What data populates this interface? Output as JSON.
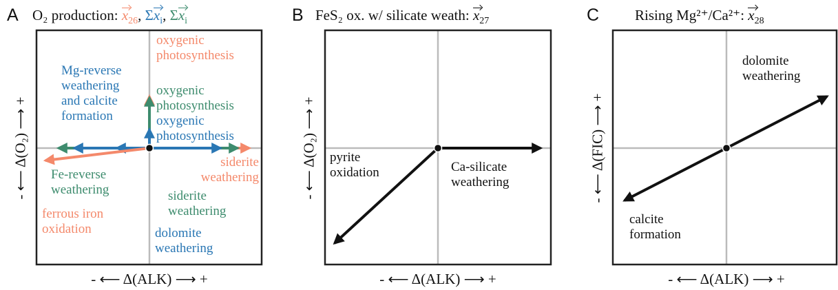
{
  "panels": [
    {
      "letter": "A",
      "title": [
        {
          "text": "O₂ production: "
        },
        {
          "vec": "x",
          "sub": "26",
          "color": "#f4896b"
        },
        {
          "text": ", "
        },
        {
          "text": "Σ",
          "color": "#2a77b4"
        },
        {
          "vec": "x",
          "sub": "i",
          "color": "#2a77b4"
        },
        {
          "text": ", "
        },
        {
          "text": "Σ",
          "color": "#3e8c6e"
        },
        {
          "vec": "x",
          "sub": "i",
          "color": "#3e8c6e"
        }
      ],
      "y_axis": "- ⟵ Δ(O₂) ⟶ +",
      "x_axis": "- ⟵ Δ(ALK) ⟶ +",
      "labels": [
        {
          "lines": [
            "oxygenic",
            "photosynthesis"
          ],
          "color": "#f4896b"
        },
        {
          "lines": [
            "oxygenic",
            "photosynthesis"
          ],
          "color": "#3e8c6e"
        },
        {
          "lines": [
            "oxygenic",
            "photosynthesis"
          ],
          "color": "#2a77b4"
        },
        {
          "lines": [
            "Mg-reverse",
            "weathering",
            "and calcite",
            "formation"
          ],
          "color": "#2a77b4"
        },
        {
          "lines": [
            "siderite",
            "weathering"
          ],
          "color": "#f4896b"
        },
        {
          "lines": [
            "Fe-reverse",
            "weathering"
          ],
          "color": "#3e8c6e"
        },
        {
          "lines": [
            "siderite",
            "weathering"
          ],
          "color": "#3e8c6e"
        },
        {
          "lines": [
            "ferrous iron",
            "oxidation"
          ],
          "color": "#f4896b"
        },
        {
          "lines": [
            "dolomite",
            "weathering"
          ],
          "color": "#2a77b4"
        }
      ]
    },
    {
      "letter": "B",
      "title": [
        {
          "text": "FeS₂ ox. w/ silicate weath: "
        },
        {
          "vec": "x",
          "sub": "27"
        }
      ],
      "y_axis": "- ⟵ Δ(O₂) ⟶ +",
      "x_axis": "- ⟵ Δ(ALK) ⟶ +",
      "labels": [
        {
          "lines": [
            "pyrite",
            "oxidation"
          ]
        },
        {
          "lines": [
            "Ca-silicate",
            "weathering"
          ]
        }
      ]
    },
    {
      "letter": "C",
      "title": [
        {
          "text": "Rising Mg²⁺/Ca²⁺: "
        },
        {
          "vec": "x",
          "sub": "28"
        }
      ],
      "y_axis": "- ⟵ Δ(FIC) ⟶ +",
      "x_axis": "- ⟵ Δ(ALK) ⟶ +",
      "labels": [
        {
          "lines": [
            "dolomite",
            "weathering"
          ]
        },
        {
          "lines": [
            "calcite",
            "formation"
          ]
        }
      ]
    }
  ]
}
